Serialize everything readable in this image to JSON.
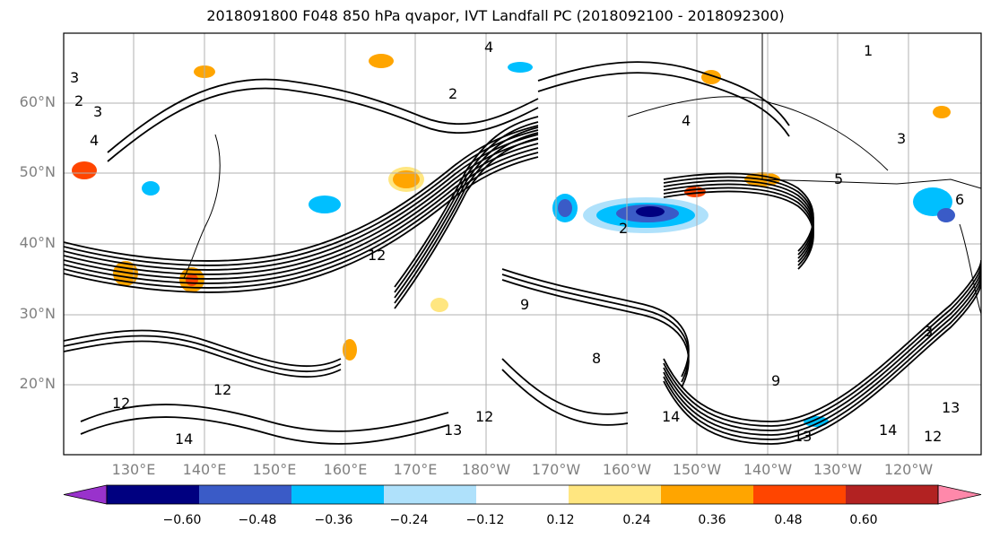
{
  "title": "2018091800 F048 850 hPa qvapor, IVT Landfall PC (2018092100 - 2018092300)",
  "lat_labels": [
    "60°N",
    "50°N",
    "40°N",
    "30°N",
    "20°N"
  ],
  "lon_labels": [
    "130°E",
    "140°E",
    "150°E",
    "160°E",
    "170°E",
    "180°W",
    "170°W",
    "160°W",
    "150°W",
    "140°W",
    "130°W",
    "120°W"
  ],
  "colorbar": {
    "ticks": [
      "−0.60",
      "−0.48",
      "−0.36",
      "−0.24",
      "−0.12",
      "0.12",
      "0.24",
      "0.36",
      "0.48",
      "0.60"
    ],
    "colors": [
      "#9932cc",
      "#000080",
      "#3a5bc7",
      "#00bfff",
      "#afe1fb",
      "#ffffff",
      "#ffe680",
      "#ffa500",
      "#ff4500",
      "#b22222",
      "#ff88aa"
    ]
  },
  "contour_labels": [
    "1",
    "2",
    "3",
    "4",
    "5",
    "6",
    "8",
    "9",
    "12",
    "13",
    "14"
  ],
  "colors": {
    "frame": "#000000",
    "grid": "#b0b0b0",
    "contour": "#000000",
    "coast": "#000000"
  }
}
